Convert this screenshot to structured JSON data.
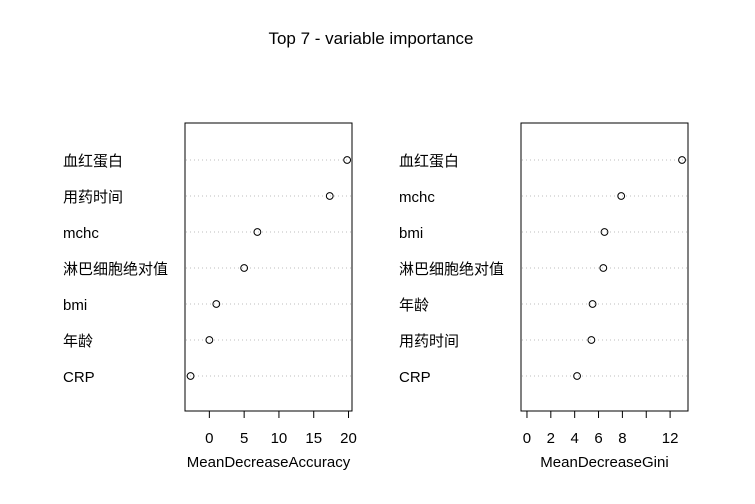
{
  "title": "Top 7 - variable importance",
  "chart_data": [
    {
      "type": "scatter",
      "xlabel": "MeanDecreaseAccuracy",
      "ylabel": "",
      "xlim": [
        -3.5,
        20.5
      ],
      "xticks": [
        0,
        5,
        10,
        15,
        20
      ],
      "grid": "dotted horizontal",
      "categories": [
        "血红蛋白",
        "用药时间",
        "mchc",
        "淋巴细胞绝对值",
        "bmi",
        "年龄",
        "CRP"
      ],
      "values": [
        19.8,
        17.3,
        6.9,
        5.0,
        1.0,
        0.0,
        -2.7
      ]
    },
    {
      "type": "scatter",
      "xlabel": "MeanDecreaseGini",
      "ylabel": "",
      "xlim": [
        -0.5,
        13.5
      ],
      "xticks": [
        0,
        2,
        4,
        6,
        8,
        12
      ],
      "grid": "dotted horizontal",
      "categories": [
        "血红蛋白",
        "mchc",
        "bmi",
        "淋巴细胞绝对值",
        "年龄",
        "用药时间",
        "CRP"
      ],
      "values": [
        13.0,
        7.9,
        6.5,
        6.4,
        5.5,
        5.4,
        4.2
      ]
    }
  ]
}
